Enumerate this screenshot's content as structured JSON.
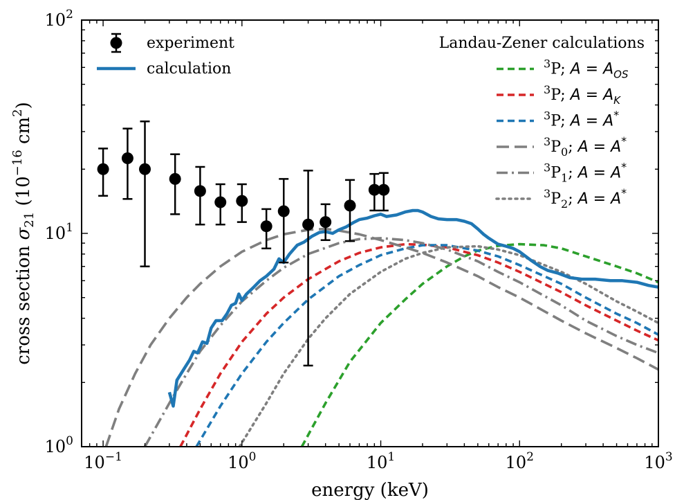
{
  "chart_data": {
    "type": "line",
    "xlabel": "energy (keV)",
    "ylabel_main": "cross section ",
    "ylabel_sym": "σ",
    "ylabel_sub": "21",
    "ylabel_open": " (10",
    "ylabel_exp": "−16",
    "ylabel_mid": " cm",
    "ylabel_exp2": "2",
    "ylabel_close": ")",
    "xscale": "log",
    "yscale": "log",
    "xlim": [
      0.07,
      1000
    ],
    "ylim": [
      1,
      100
    ],
    "x_ticks": [
      {
        "value": 0.1,
        "base": "10",
        "exp": "−1"
      },
      {
        "value": 1,
        "base": "10",
        "exp": "0"
      },
      {
        "value": 10,
        "base": "10",
        "exp": "1"
      },
      {
        "value": 100,
        "base": "10",
        "exp": "2"
      },
      {
        "value": 1000,
        "base": "10",
        "exp": "3"
      }
    ],
    "y_ticks": [
      {
        "value": 1,
        "base": "10",
        "exp": "0"
      },
      {
        "value": 10,
        "base": "10",
        "exp": "1"
      },
      {
        "value": 100,
        "base": "10",
        "exp": "2"
      }
    ],
    "legend_right_title": "Landau-Zener calculations",
    "experiment": {
      "name": "experiment",
      "color": "#000000",
      "points": [
        {
          "x": 0.1,
          "y": 20,
          "lo": 15,
          "hi": 25
        },
        {
          "x": 0.15,
          "y": 22.5,
          "lo": 14.5,
          "hi": 31
        },
        {
          "x": 0.2,
          "y": 20,
          "lo": 7,
          "hi": 33.5
        },
        {
          "x": 0.33,
          "y": 18,
          "lo": 12.3,
          "hi": 23.5
        },
        {
          "x": 0.5,
          "y": 15.8,
          "lo": 11,
          "hi": 20.5
        },
        {
          "x": 0.7,
          "y": 14,
          "lo": 11,
          "hi": 17
        },
        {
          "x": 1.0,
          "y": 14.2,
          "lo": 11.3,
          "hi": 17
        },
        {
          "x": 1.5,
          "y": 10.8,
          "lo": 8.5,
          "hi": 13
        },
        {
          "x": 2.0,
          "y": 12.7,
          "lo": 7.3,
          "hi": 18
        },
        {
          "x": 3.0,
          "y": 11.0,
          "lo": 2.4,
          "hi": 19.7
        },
        {
          "x": 4.0,
          "y": 11.3,
          "lo": 9.3,
          "hi": 13.7
        },
        {
          "x": 6.0,
          "y": 13.5,
          "lo": 9.2,
          "hi": 17.8
        },
        {
          "x": 9.0,
          "y": 16.0,
          "lo": 12.8,
          "hi": 19.0
        },
        {
          "x": 10.5,
          "y": 16.0,
          "lo": 12.8,
          "hi": 19.2
        }
      ]
    },
    "series": [
      {
        "name": "calculation",
        "color": "#1f77b4",
        "style": "solid",
        "points": [
          [
            0.3,
            1.8
          ],
          [
            0.32,
            1.55
          ],
          [
            0.34,
            2.05
          ],
          [
            0.38,
            2.3
          ],
          [
            0.42,
            2.55
          ],
          [
            0.45,
            2.8
          ],
          [
            0.48,
            2.75
          ],
          [
            0.52,
            3.1
          ],
          [
            0.56,
            3.05
          ],
          [
            0.6,
            3.6
          ],
          [
            0.65,
            3.9
          ],
          [
            0.72,
            3.9
          ],
          [
            0.78,
            4.2
          ],
          [
            0.84,
            4.6
          ],
          [
            0.9,
            4.7
          ],
          [
            0.95,
            5.2
          ],
          [
            1.0,
            4.85
          ],
          [
            1.08,
            5.2
          ],
          [
            1.2,
            5.55
          ],
          [
            1.35,
            6.0
          ],
          [
            1.5,
            6.3
          ],
          [
            1.7,
            6.8
          ],
          [
            1.85,
            7.6
          ],
          [
            2.0,
            7.3
          ],
          [
            2.2,
            8.0
          ],
          [
            2.5,
            8.8
          ],
          [
            2.8,
            9.1
          ],
          [
            3.2,
            9.7
          ],
          [
            3.6,
            10.1
          ],
          [
            4.0,
            10.2
          ],
          [
            4.5,
            10.0
          ],
          [
            5.0,
            10.4
          ],
          [
            5.6,
            10.7
          ],
          [
            6.3,
            11.2
          ],
          [
            7.0,
            11.6
          ],
          [
            8.0,
            11.8
          ],
          [
            9.0,
            12.1
          ],
          [
            10.0,
            12.3
          ],
          [
            11.0,
            12.0
          ],
          [
            13.0,
            12.2
          ],
          [
            15.0,
            12.6
          ],
          [
            17.0,
            12.8
          ],
          [
            18.5,
            12.8
          ],
          [
            20.0,
            12.6
          ],
          [
            23.0,
            12.0
          ],
          [
            26.0,
            11.7
          ],
          [
            30.0,
            11.6
          ],
          [
            35.0,
            11.6
          ],
          [
            40.0,
            11.4
          ],
          [
            45.0,
            11.1
          ],
          [
            50.0,
            10.5
          ],
          [
            55.0,
            9.9
          ],
          [
            60.0,
            9.5
          ],
          [
            70.0,
            8.9
          ],
          [
            80.0,
            8.7
          ],
          [
            90.0,
            8.5
          ],
          [
            100.0,
            8.2
          ],
          [
            120.0,
            7.5
          ],
          [
            140.0,
            7.0
          ],
          [
            160.0,
            6.7
          ],
          [
            190.0,
            6.5
          ],
          [
            230.0,
            6.2
          ],
          [
            280.0,
            6.1
          ],
          [
            350.0,
            6.1
          ],
          [
            450.0,
            6.0
          ],
          [
            550.0,
            6.0
          ],
          [
            700.0,
            5.9
          ],
          [
            850.0,
            5.7
          ],
          [
            1000.0,
            5.6
          ]
        ]
      },
      {
        "name": "³P; A = A_OS",
        "label_main": "P; ",
        "label_pre_sup": "3",
        "label_eq_rhs": "A",
        "label_eq_sub": "OS",
        "label_eq_sup": "",
        "label_p_sub": "",
        "color": "#2ca02c",
        "style": "dash",
        "points": [
          [
            2.7,
            1.0
          ],
          [
            4,
            1.6
          ],
          [
            6,
            2.5
          ],
          [
            10,
            3.8
          ],
          [
            15,
            4.9
          ],
          [
            20,
            5.8
          ],
          [
            30,
            7.0
          ],
          [
            40,
            7.8
          ],
          [
            50,
            8.3
          ],
          [
            70,
            8.75
          ],
          [
            100,
            8.9
          ],
          [
            150,
            8.8
          ],
          [
            200,
            8.5
          ],
          [
            300,
            7.8
          ],
          [
            500,
            7.0
          ],
          [
            700,
            6.5
          ],
          [
            1000,
            5.9
          ]
        ]
      },
      {
        "name": "³P; A = A_K",
        "label_main": "P; ",
        "label_pre_sup": "3",
        "label_eq_rhs": "A",
        "label_eq_sub": "K",
        "label_eq_sup": "",
        "label_p_sub": "",
        "color": "#d62728",
        "style": "dash",
        "points": [
          [
            0.36,
            1.0
          ],
          [
            0.5,
            1.5
          ],
          [
            0.7,
            2.2
          ],
          [
            1.0,
            3.1
          ],
          [
            1.5,
            4.2
          ],
          [
            2,
            5.0
          ],
          [
            3,
            6.1
          ],
          [
            5,
            7.4
          ],
          [
            7,
            8.1
          ],
          [
            10,
            8.6
          ],
          [
            15,
            8.9
          ],
          [
            20,
            8.85
          ],
          [
            30,
            8.6
          ],
          [
            50,
            7.9
          ],
          [
            70,
            7.3
          ],
          [
            100,
            6.6
          ],
          [
            200,
            5.3
          ],
          [
            300,
            4.6
          ],
          [
            500,
            3.9
          ],
          [
            700,
            3.5
          ],
          [
            1000,
            3.15
          ]
        ]
      },
      {
        "name": "³P; A = A*",
        "label_main": "P; ",
        "label_pre_sup": "3",
        "label_eq_rhs": "A",
        "label_eq_sub": "",
        "label_eq_sup": "*",
        "label_p_sub": "",
        "color": "#1f77b4",
        "style": "dash",
        "points": [
          [
            0.47,
            1.0
          ],
          [
            0.7,
            1.55
          ],
          [
            1.0,
            2.2
          ],
          [
            1.5,
            3.1
          ],
          [
            2,
            3.8
          ],
          [
            3,
            4.9
          ],
          [
            5,
            6.3
          ],
          [
            7,
            7.1
          ],
          [
            10,
            7.9
          ],
          [
            15,
            8.5
          ],
          [
            20,
            8.8
          ],
          [
            30,
            8.8
          ],
          [
            50,
            8.3
          ],
          [
            70,
            7.8
          ],
          [
            100,
            7.1
          ],
          [
            200,
            5.8
          ],
          [
            300,
            5.0
          ],
          [
            500,
            4.2
          ],
          [
            700,
            3.8
          ],
          [
            1000,
            3.35
          ]
        ]
      },
      {
        "name": "³P₀; A = A*",
        "label_main": "P",
        "label_pre_sup": "3",
        "label_eq_rhs": "A",
        "label_eq_sub": "",
        "label_eq_sup": "*",
        "label_p_sub": "0",
        "color": "#7f7f7f",
        "style": "longdash",
        "points": [
          [
            0.105,
            1.0
          ],
          [
            0.13,
            1.5
          ],
          [
            0.17,
            2.2
          ],
          [
            0.22,
            3.0
          ],
          [
            0.3,
            4.0
          ],
          [
            0.4,
            5.0
          ],
          [
            0.5,
            5.8
          ],
          [
            0.7,
            7.0
          ],
          [
            1.0,
            8.2
          ],
          [
            1.5,
            9.3
          ],
          [
            2,
            9.9
          ],
          [
            3,
            10.4
          ],
          [
            4,
            10.5
          ],
          [
            5,
            10.3
          ],
          [
            7,
            9.9
          ],
          [
            10,
            9.3
          ],
          [
            15,
            8.6
          ],
          [
            20,
            8.1
          ],
          [
            30,
            7.3
          ],
          [
            50,
            6.3
          ],
          [
            70,
            5.6
          ],
          [
            100,
            5.0
          ],
          [
            200,
            3.9
          ],
          [
            300,
            3.4
          ],
          [
            500,
            2.9
          ],
          [
            700,
            2.6
          ],
          [
            1000,
            2.3
          ]
        ]
      },
      {
        "name": "³P₁; A = A*",
        "label_main": "P",
        "label_pre_sup": "3",
        "label_eq_rhs": "A",
        "label_eq_sub": "",
        "label_eq_sup": "*",
        "label_p_sub": "1",
        "color": "#7f7f7f",
        "style": "dashdot",
        "points": [
          [
            0.2,
            1.0
          ],
          [
            0.3,
            1.6
          ],
          [
            0.4,
            2.2
          ],
          [
            0.5,
            2.8
          ],
          [
            0.7,
            3.7
          ],
          [
            1.0,
            4.8
          ],
          [
            1.5,
            6.0
          ],
          [
            2,
            6.9
          ],
          [
            3,
            8.0
          ],
          [
            5,
            9.0
          ],
          [
            7,
            9.4
          ],
          [
            10,
            9.5
          ],
          [
            15,
            9.3
          ],
          [
            20,
            9.0
          ],
          [
            30,
            8.4
          ],
          [
            50,
            7.4
          ],
          [
            70,
            6.6
          ],
          [
            100,
            5.9
          ],
          [
            200,
            4.6
          ],
          [
            300,
            3.9
          ],
          [
            500,
            3.3
          ],
          [
            700,
            3.0
          ],
          [
            1000,
            2.75
          ]
        ]
      },
      {
        "name": "³P₂; A = A*",
        "label_main": "P",
        "label_pre_sup": "3",
        "label_eq_rhs": "A",
        "label_eq_sub": "",
        "label_eq_sup": "*",
        "label_p_sub": "2",
        "color": "#7f7f7f",
        "style": "dot",
        "points": [
          [
            0.96,
            1.0
          ],
          [
            1.5,
            1.6
          ],
          [
            2,
            2.2
          ],
          [
            3,
            3.2
          ],
          [
            4,
            4.0
          ],
          [
            6,
            5.2
          ],
          [
            10,
            6.6
          ],
          [
            15,
            7.6
          ],
          [
            20,
            8.1
          ],
          [
            30,
            8.6
          ],
          [
            50,
            8.7
          ],
          [
            70,
            8.4
          ],
          [
            100,
            7.9
          ],
          [
            200,
            6.6
          ],
          [
            300,
            5.8
          ],
          [
            500,
            4.8
          ],
          [
            700,
            4.3
          ],
          [
            1000,
            3.8
          ]
        ]
      }
    ]
  }
}
